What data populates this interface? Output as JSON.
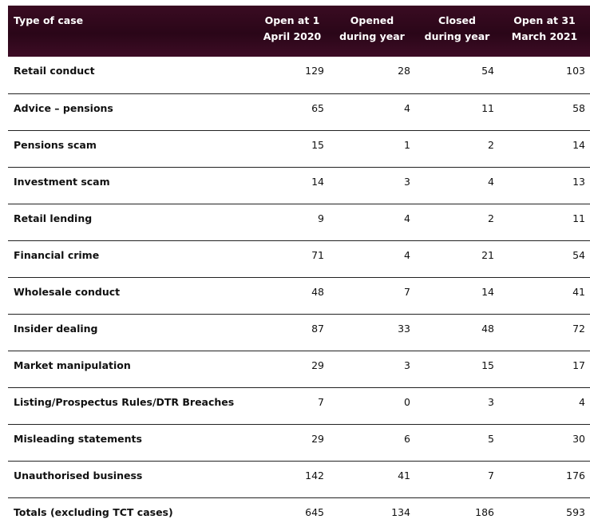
{
  "table": {
    "header": [
      "Type of case",
      "Open at 1 April 2020",
      "Opened during year",
      "Closed during year",
      "Open at 31 March 2021"
    ],
    "rows": [
      [
        "Retail conduct",
        "129",
        "28",
        "54",
        "103"
      ],
      [
        "Advice – pensions",
        "65",
        "4",
        "11",
        "58"
      ],
      [
        "Pensions scam",
        "15",
        "1",
        "2",
        "14"
      ],
      [
        "Investment scam",
        "14",
        "3",
        "4",
        "13"
      ],
      [
        "Retail lending",
        "9",
        "4",
        "2",
        "11"
      ],
      [
        "Financial crime",
        "71",
        "4",
        "21",
        "54"
      ],
      [
        "Wholesale conduct",
        "48",
        "7",
        "14",
        "41"
      ],
      [
        "Insider dealing",
        "87",
        "33",
        "48",
        "72"
      ],
      [
        "Market manipulation",
        "29",
        "3",
        "15",
        "17"
      ],
      [
        "Listing/Prospectus Rules/DTR Breaches",
        "7",
        "0",
        "3",
        "4"
      ],
      [
        "Misleading statements",
        "29",
        "6",
        "5",
        "30"
      ],
      [
        "Unauthorised business",
        "142",
        "41",
        "7",
        "176"
      ],
      [
        "Totals (excluding TCT cases)",
        "645",
        "134",
        "186",
        "593"
      ]
    ]
  }
}
